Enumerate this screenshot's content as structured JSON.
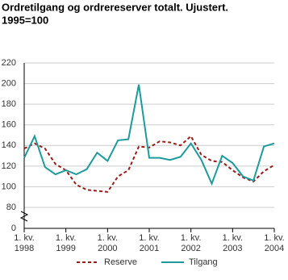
{
  "chart_data": {
    "type": "line",
    "title": "Ordretilgang og ordrereserver totalt. Ujustert.",
    "subtitle": "1995=100",
    "categories": [
      "1. kv. 1998",
      null,
      null,
      null,
      "1. kv. 1999",
      null,
      null,
      null,
      "1. kv. 2000",
      null,
      null,
      null,
      "1. kv. 2001",
      null,
      null,
      null,
      "1. kv. 2002",
      null,
      null,
      null,
      "1. kv. 2003",
      null,
      null,
      null,
      "1. kv. 2004"
    ],
    "series": [
      {
        "name": "Reserve",
        "color": "#9b1b1b",
        "dashed": true,
        "values": [
          137,
          142,
          137,
          122,
          116,
          102,
          97,
          96,
          95,
          110,
          116,
          139,
          138,
          144,
          143,
          140,
          149,
          131,
          125,
          124,
          116,
          109,
          105,
          115,
          121
        ]
      },
      {
        "name": "Tilgang",
        "color": "#1d9a9c",
        "dashed": false,
        "values": [
          128,
          149,
          119,
          112,
          116,
          112,
          117,
          133,
          125,
          145,
          146,
          199,
          128,
          128,
          126,
          129,
          142,
          126,
          103,
          130,
          123,
          110,
          106,
          139,
          142
        ]
      }
    ],
    "ylim": [
      0,
      220
    ],
    "yticks": [
      0,
      80,
      100,
      120,
      140,
      160,
      180,
      200,
      220
    ],
    "y_break": [
      0,
      80
    ],
    "grid": true,
    "legend": "bottom"
  }
}
